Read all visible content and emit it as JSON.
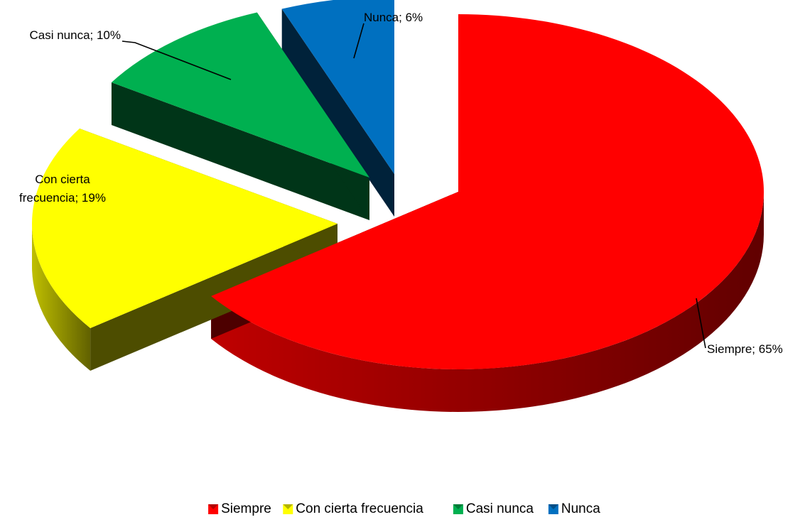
{
  "chart_data": {
    "type": "pie",
    "three_d": true,
    "exploded": true,
    "categories": [
      "Siempre",
      "Con cierta frecuencia",
      "Casi nunca",
      "Nunca"
    ],
    "values": [
      65,
      19,
      10,
      6
    ],
    "unit": "%",
    "data_labels": [
      "Siempre; 65%",
      "Con cierta frecuencia; 19%",
      "Casi nunca; 10%",
      "Nunca; 6%"
    ],
    "colors": [
      "#ff0000",
      "#ffff00",
      "#00b050",
      "#0070c0"
    ],
    "legend_position": "bottom",
    "title": ""
  }
}
